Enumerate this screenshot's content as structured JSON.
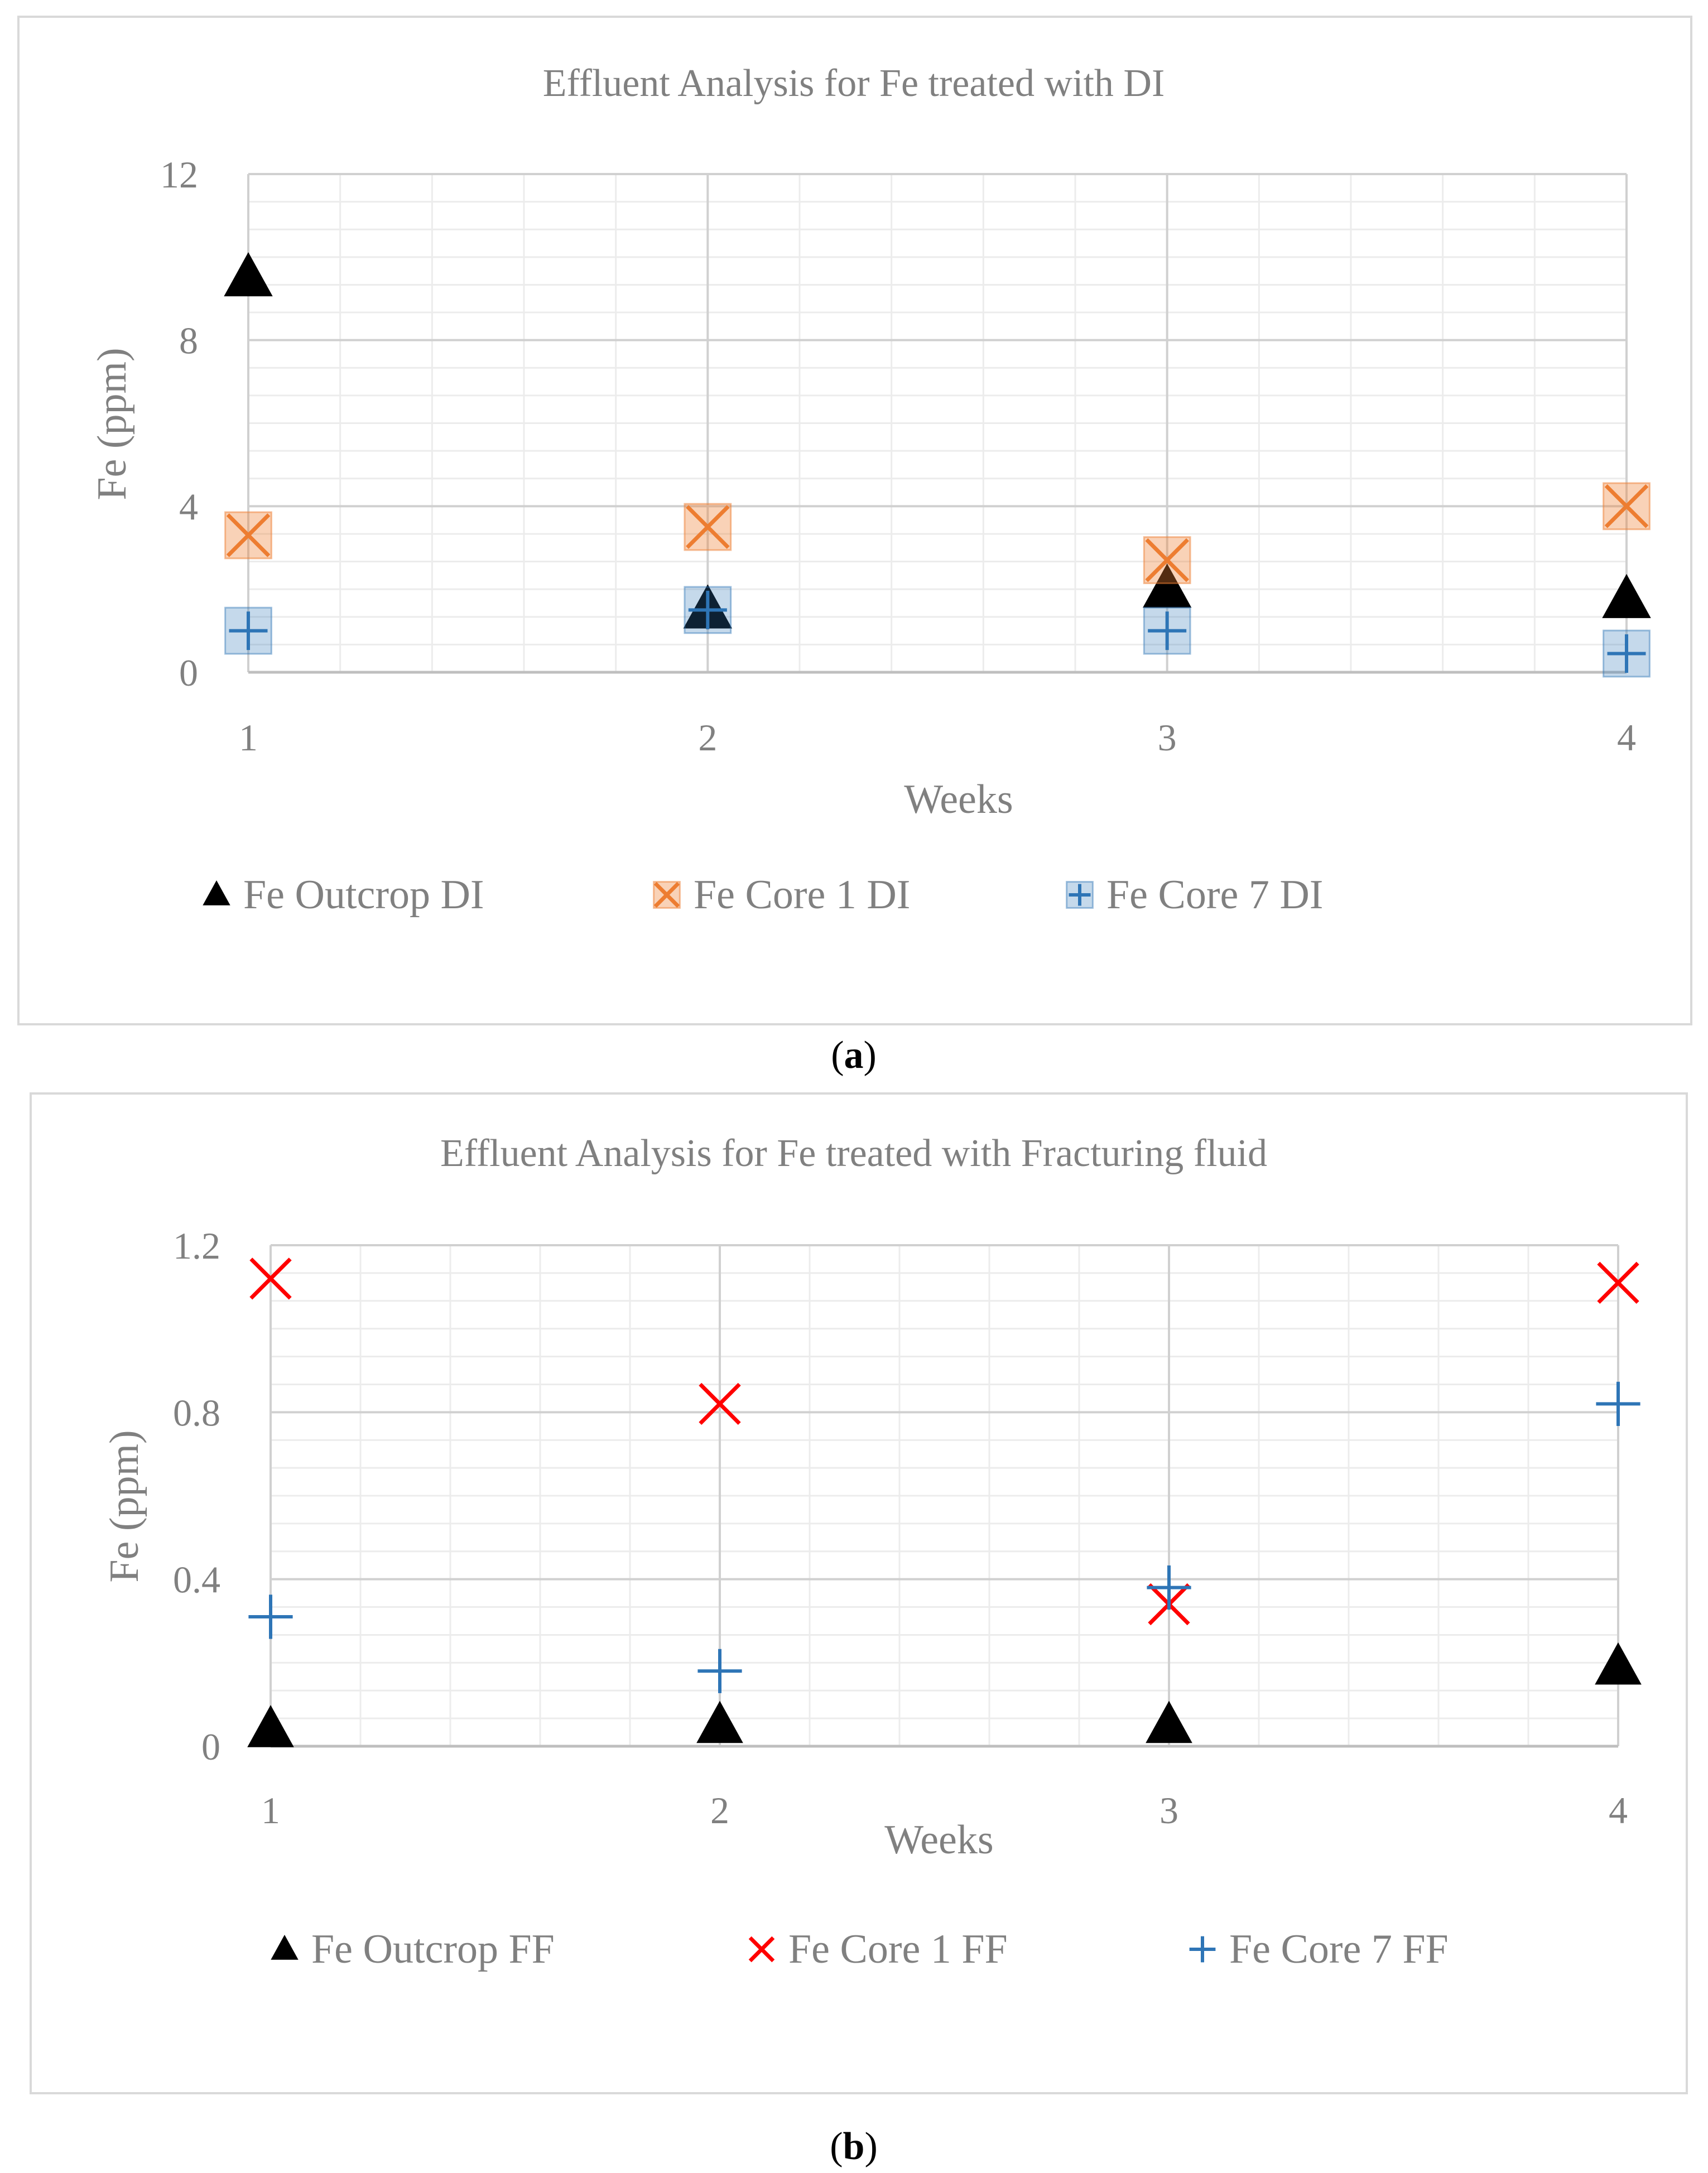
{
  "chart_data": [
    {
      "type": "scatter",
      "title": "Effluent Analysis for Fe treated with DI",
      "xlabel": "Weeks",
      "ylabel": "Fe (ppm)",
      "x": [
        1,
        2,
        3,
        4
      ],
      "xlim": [
        1,
        4
      ],
      "ylim": [
        0,
        12
      ],
      "yticks": [
        "0",
        "4",
        "8",
        "12"
      ],
      "xticks": [
        "1",
        "2",
        "3",
        "4"
      ],
      "grid": true,
      "legend_position": "bottom",
      "caption_label": "a",
      "series": [
        {
          "name": "Fe Outcrop DI",
          "marker": "triangle",
          "color": "#000000",
          "values": [
            9.5,
            1.5,
            2.0,
            1.75
          ]
        },
        {
          "name": "Fe Core 1 DI",
          "marker": "x-square",
          "color": "#ED7D31",
          "values": [
            3.3,
            3.5,
            2.7,
            4.0
          ]
        },
        {
          "name": "Fe Core 7 DI",
          "marker": "plus-square",
          "color": "#2E75B6",
          "values": [
            1.0,
            1.5,
            1.0,
            0.45
          ]
        }
      ]
    },
    {
      "type": "scatter",
      "title": "Effluent Analysis for Fe treated with Fracturing fluid",
      "xlabel": "Weeks",
      "ylabel": "Fe (ppm)",
      "x": [
        1,
        2,
        3,
        4
      ],
      "xlim": [
        1,
        4
      ],
      "ylim": [
        0,
        1.2
      ],
      "yticks": [
        "0",
        "0.4",
        "0.8",
        "1.2"
      ],
      "xticks": [
        "1",
        "2",
        "3",
        "4"
      ],
      "grid": true,
      "legend_position": "bottom",
      "caption_label": "b",
      "series": [
        {
          "name": "Fe Outcrop FF",
          "marker": "triangle",
          "color": "#000000",
          "values": [
            0.04,
            0.05,
            0.05,
            0.19
          ]
        },
        {
          "name": "Fe Core 1 FF",
          "marker": "x",
          "color": "#FF0000",
          "values": [
            1.12,
            0.82,
            0.34,
            1.11
          ]
        },
        {
          "name": "Fe Core 7 FF",
          "marker": "plus",
          "color": "#2E75B6",
          "values": [
            0.31,
            0.18,
            0.38,
            0.82
          ]
        }
      ]
    }
  ]
}
